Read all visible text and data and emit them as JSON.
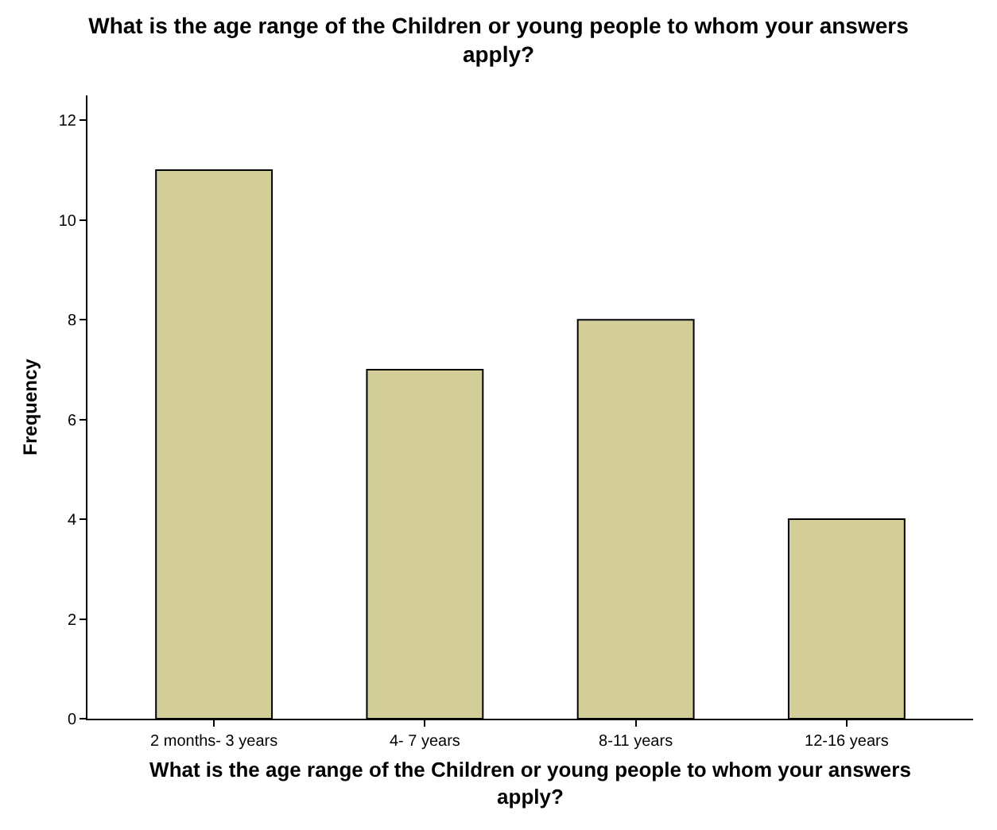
{
  "chart_data": {
    "type": "bar",
    "title": "What is the age range of the Children or young people to whom your answers\napply?",
    "xlabel": "What is the age range of the Children or young people to whom your answers\napply?",
    "ylabel": "Frequency",
    "categories": [
      "2 months- 3 years",
      "4- 7 years",
      "8-11 years",
      "12-16 years"
    ],
    "values": [
      11,
      7,
      8,
      4
    ],
    "color": "#d3ce97",
    "ylim": [
      0,
      12.5
    ],
    "yticks": [
      0,
      2,
      4,
      6,
      8,
      10,
      12
    ],
    "legend": false
  }
}
